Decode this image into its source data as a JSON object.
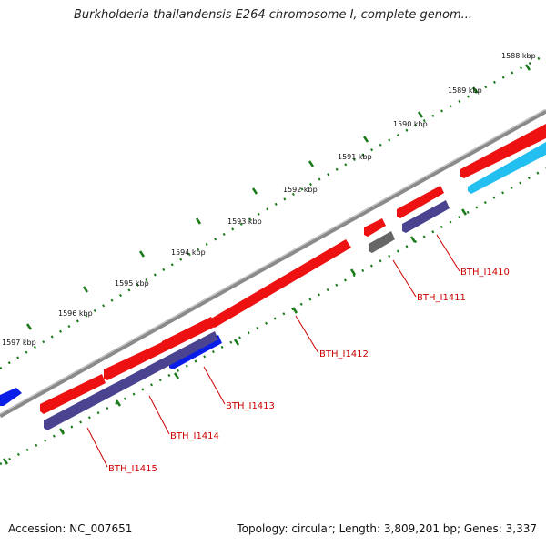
{
  "title": "Burkholderia thailandensis E264 chromosome I, complete genom...",
  "footer": {
    "accession": "Accession: NC_007651",
    "summary": "Topology: circular; Length: 3,809,201 bp; Genes: 3,337"
  },
  "kbp_ticks": [
    "1588 kbp",
    "1589 kbp",
    "1590 kbp",
    "1591 kbp",
    "1592 kbp",
    "1593 kbp",
    "1594 kbp",
    "1595 kbp",
    "1596 kbp",
    "1597 kbp"
  ],
  "gene_labels": [
    "BTH_I1410",
    "BTH_I1411",
    "BTH_I1412",
    "BTH_I1413",
    "BTH_I1414",
    "BTH_I1415"
  ],
  "colors": {
    "forward_cds": "#ee1111",
    "reverse_cds_dark": "#4a4490",
    "reverse_cds_blue": "#0b1ee8",
    "cyan_feature": "#22bff0",
    "gray_feature": "#666666",
    "backbone": "#888888",
    "tick_green": "#1a7a1a",
    "label_red": "#cc0000"
  }
}
